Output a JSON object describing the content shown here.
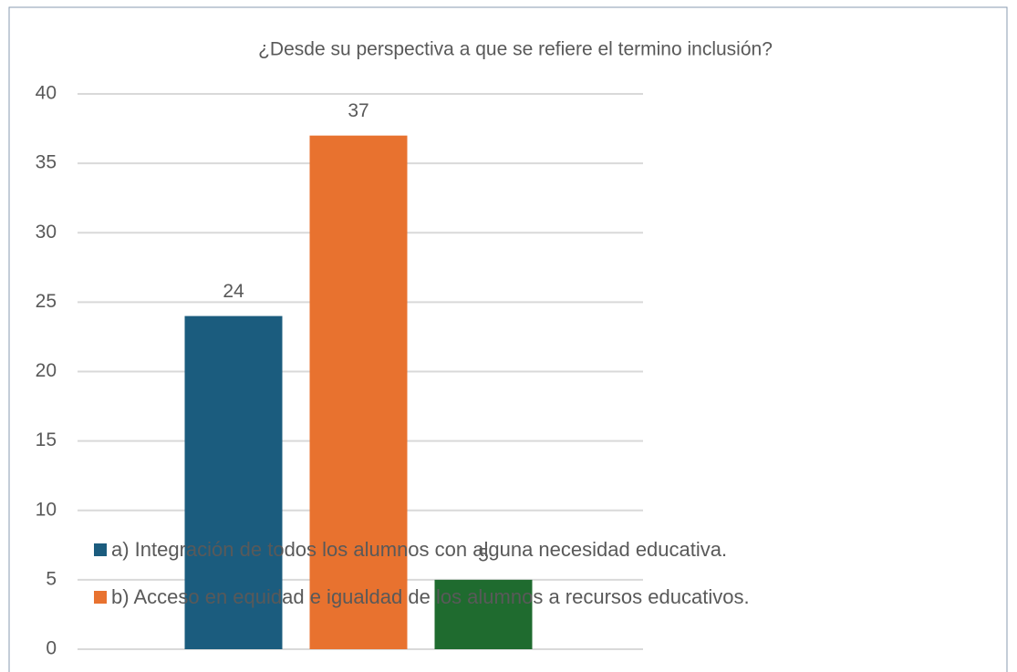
{
  "chart_data": {
    "type": "bar",
    "title": "¿Desde su perspectiva a que se refiere el termino inclusión?",
    "categories": [
      "a) Integración de todos los alumnos con alguna necesidad educativa.",
      "b) Acceso en equidad e igualdad de los alumnos a recursos educativos.",
      null
    ],
    "values": [
      24,
      37,
      5
    ],
    "colors": [
      "#1b5c7e",
      "#e8722f",
      "#1f6b2f"
    ],
    "ylim": [
      0,
      40
    ],
    "yticks": [
      0,
      5,
      10,
      15,
      20,
      25,
      30,
      35,
      40
    ],
    "grid": true,
    "data_labels": true
  }
}
